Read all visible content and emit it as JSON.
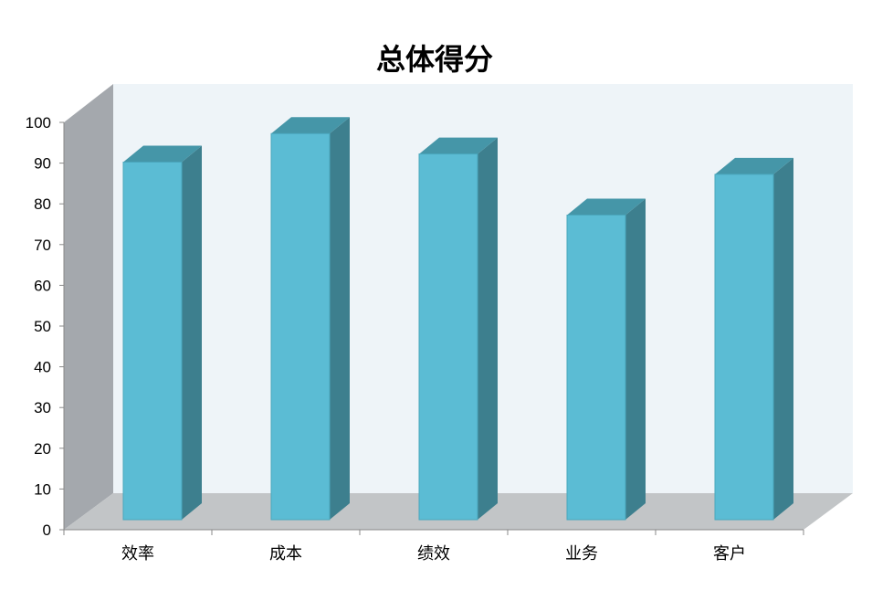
{
  "chart_data": {
    "type": "bar",
    "title": "总体得分",
    "categories": [
      "效率",
      "成本",
      "绩效",
      "业务",
      "客户"
    ],
    "values": [
      88,
      95,
      90,
      75,
      85
    ],
    "ylim": [
      0,
      100
    ],
    "yticks": [
      0,
      10,
      20,
      30,
      40,
      50,
      60,
      70,
      80,
      90,
      100
    ],
    "xlabel": "",
    "ylabel": "",
    "grid": false,
    "legend": "none",
    "style": "3d-column",
    "colors": {
      "bar_front": "#5bbcd4",
      "bar_side": "#3d7f8e",
      "bar_top": "#4596a8",
      "back_wall": "#eef4f8",
      "side_wall": "#a4a8ad",
      "floor": "#c2c5c7"
    }
  }
}
